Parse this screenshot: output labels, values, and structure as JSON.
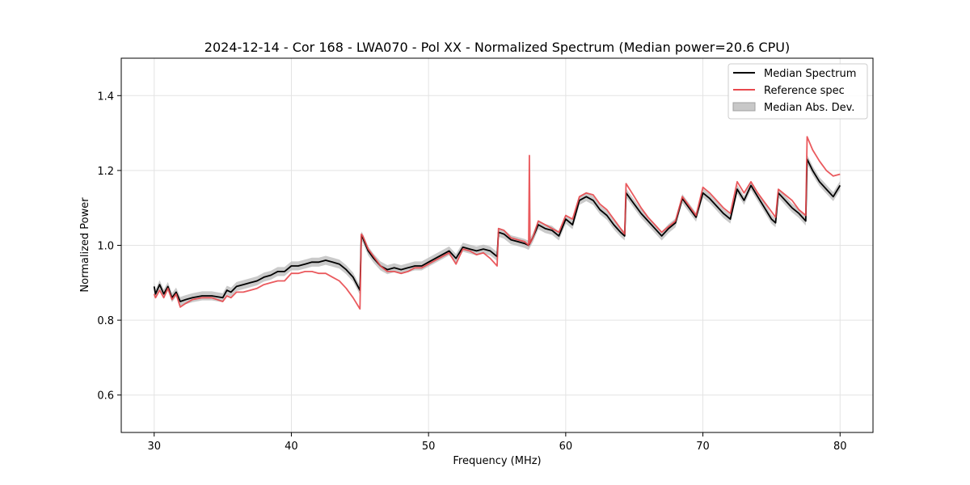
{
  "chart_data": {
    "type": "line",
    "title": "2024-12-14 - Cor 168 - LWA070 - Pol XX - Normalized Spectrum (Median power=20.6 CPU)",
    "xlabel": "Frequency (MHz)",
    "ylabel": "Normalized Power",
    "xlim": [
      27.6,
      82.4
    ],
    "ylim": [
      0.5,
      1.5
    ],
    "xticks": [
      30,
      40,
      50,
      60,
      70,
      80
    ],
    "yticks": [
      0.6,
      0.8,
      1.0,
      1.2,
      1.4
    ],
    "xtick_labels": [
      "30",
      "40",
      "50",
      "60",
      "70",
      "80"
    ],
    "ytick_labels": [
      "0.6",
      "0.8",
      "1.0",
      "1.2",
      "1.4"
    ],
    "grid": true,
    "legend_position": "top-right",
    "legend": [
      "Median Spectrum",
      "Reference spec",
      "Median Abs. Dev."
    ],
    "colors": {
      "median": "#000000",
      "reference": "#e8484d",
      "mad": "#b8b8b8"
    },
    "mad_halfwidth": 0.012,
    "series": [
      {
        "name": "Median Spectrum",
        "x": [
          30.0,
          30.1,
          30.4,
          30.7,
          31.0,
          31.3,
          31.6,
          31.9,
          32.3,
          32.8,
          33.5,
          34.2,
          35.0,
          35.3,
          35.6,
          36.0,
          36.5,
          37.0,
          37.5,
          38.0,
          38.5,
          39.0,
          39.5,
          40.0,
          40.5,
          41.0,
          41.5,
          42.0,
          42.5,
          43.0,
          43.5,
          44.0,
          44.5,
          45.0,
          45.1,
          45.2,
          45.6,
          46.0,
          46.5,
          47.0,
          47.5,
          48.0,
          48.5,
          49.0,
          49.5,
          50.0,
          50.5,
          51.0,
          51.5,
          52.0,
          52.5,
          53.0,
          53.5,
          54.0,
          54.5,
          55.0,
          55.1,
          55.5,
          56.0,
          56.5,
          57.0,
          57.3,
          57.6,
          58.0,
          58.5,
          59.0,
          59.5,
          60.0,
          60.5,
          61.0,
          61.5,
          62.0,
          62.5,
          63.0,
          63.5,
          64.0,
          64.3,
          64.4,
          65.0,
          65.5,
          66.0,
          66.5,
          67.0,
          67.5,
          68.0,
          68.5,
          69.0,
          69.5,
          70.0,
          70.5,
          71.0,
          71.5,
          72.0,
          72.5,
          73.0,
          73.5,
          74.0,
          74.5,
          75.0,
          75.3,
          75.5,
          76.0,
          76.5,
          77.0,
          77.5,
          77.6,
          78.0,
          78.5,
          79.0,
          79.5,
          80.0
        ],
        "values": [
          0.89,
          0.87,
          0.895,
          0.87,
          0.89,
          0.86,
          0.875,
          0.85,
          0.855,
          0.86,
          0.865,
          0.865,
          0.86,
          0.88,
          0.875,
          0.89,
          0.895,
          0.9,
          0.905,
          0.915,
          0.92,
          0.93,
          0.93,
          0.945,
          0.945,
          0.95,
          0.955,
          0.955,
          0.96,
          0.955,
          0.95,
          0.935,
          0.915,
          0.88,
          1.025,
          1.02,
          0.985,
          0.965,
          0.945,
          0.935,
          0.94,
          0.935,
          0.94,
          0.945,
          0.945,
          0.955,
          0.965,
          0.975,
          0.985,
          0.965,
          0.995,
          0.99,
          0.985,
          0.99,
          0.985,
          0.97,
          1.035,
          1.03,
          1.015,
          1.01,
          1.005,
          1.0,
          1.02,
          1.055,
          1.045,
          1.04,
          1.025,
          1.07,
          1.055,
          1.12,
          1.13,
          1.12,
          1.095,
          1.08,
          1.055,
          1.035,
          1.025,
          1.14,
          1.11,
          1.085,
          1.065,
          1.045,
          1.025,
          1.045,
          1.06,
          1.125,
          1.1,
          1.075,
          1.14,
          1.125,
          1.105,
          1.085,
          1.07,
          1.15,
          1.12,
          1.16,
          1.13,
          1.1,
          1.07,
          1.06,
          1.14,
          1.12,
          1.1,
          1.085,
          1.065,
          1.23,
          1.2,
          1.17,
          1.15,
          1.13,
          1.16
        ]
      },
      {
        "name": "Reference spec",
        "x": [
          30.0,
          30.1,
          30.4,
          30.7,
          31.0,
          31.3,
          31.6,
          31.9,
          32.3,
          32.8,
          33.5,
          34.2,
          35.0,
          35.3,
          35.6,
          36.0,
          36.5,
          37.0,
          37.5,
          38.0,
          38.5,
          39.0,
          39.5,
          40.0,
          40.5,
          41.0,
          41.5,
          42.0,
          42.5,
          43.0,
          43.5,
          44.0,
          44.5,
          45.0,
          45.1,
          45.2,
          45.6,
          46.0,
          46.5,
          47.0,
          47.5,
          48.0,
          48.5,
          49.0,
          49.5,
          50.0,
          50.5,
          51.0,
          51.5,
          52.0,
          52.5,
          53.0,
          53.5,
          54.0,
          54.5,
          55.0,
          55.1,
          55.5,
          56.0,
          56.5,
          57.0,
          57.3,
          57.35,
          57.4,
          57.6,
          58.0,
          58.5,
          59.0,
          59.5,
          60.0,
          60.5,
          61.0,
          61.5,
          62.0,
          62.5,
          63.0,
          63.5,
          64.0,
          64.3,
          64.4,
          65.0,
          65.5,
          66.0,
          66.5,
          67.0,
          67.5,
          68.0,
          68.5,
          69.0,
          69.5,
          70.0,
          70.5,
          71.0,
          71.5,
          72.0,
          72.5,
          73.0,
          73.5,
          74.0,
          74.5,
          75.0,
          75.3,
          75.5,
          76.0,
          76.5,
          77.0,
          77.5,
          77.6,
          78.0,
          78.5,
          79.0,
          79.5,
          80.0
        ],
        "values": [
          0.87,
          0.86,
          0.88,
          0.86,
          0.885,
          0.855,
          0.87,
          0.835,
          0.845,
          0.855,
          0.86,
          0.86,
          0.85,
          0.865,
          0.86,
          0.875,
          0.875,
          0.88,
          0.885,
          0.895,
          0.9,
          0.905,
          0.905,
          0.925,
          0.925,
          0.93,
          0.93,
          0.925,
          0.925,
          0.915,
          0.905,
          0.885,
          0.86,
          0.83,
          1.03,
          1.025,
          0.99,
          0.97,
          0.945,
          0.93,
          0.93,
          0.925,
          0.93,
          0.94,
          0.94,
          0.95,
          0.96,
          0.97,
          0.98,
          0.95,
          0.99,
          0.985,
          0.975,
          0.98,
          0.965,
          0.945,
          1.045,
          1.04,
          1.02,
          1.015,
          1.01,
          1.0,
          1.24,
          1.005,
          1.02,
          1.065,
          1.055,
          1.045,
          1.035,
          1.08,
          1.07,
          1.13,
          1.14,
          1.135,
          1.11,
          1.095,
          1.07,
          1.045,
          1.03,
          1.165,
          1.13,
          1.1,
          1.075,
          1.055,
          1.035,
          1.05,
          1.065,
          1.13,
          1.105,
          1.08,
          1.155,
          1.14,
          1.12,
          1.1,
          1.085,
          1.17,
          1.14,
          1.17,
          1.14,
          1.115,
          1.09,
          1.075,
          1.15,
          1.135,
          1.12,
          1.095,
          1.08,
          1.29,
          1.255,
          1.225,
          1.2,
          1.185,
          1.19
        ]
      }
    ]
  }
}
